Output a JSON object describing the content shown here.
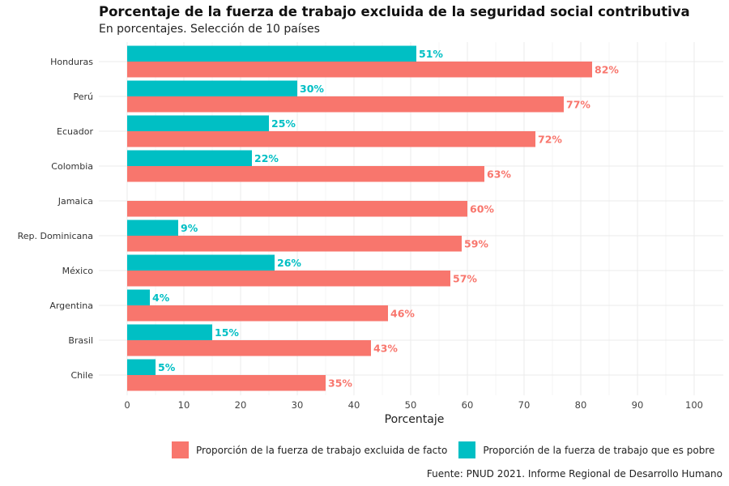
{
  "header": {
    "title": "Porcentaje de la fuerza de trabajo excluida de la seguridad social contributiva",
    "subtitle": "En porcentajes. Selección de 10 países"
  },
  "footer": {
    "source": "Fuente: PNUD 2021. Informe Regional de Desarrollo Humano"
  },
  "colors": {
    "excluida": "#F8766D",
    "pobre": "#00BFC4",
    "grid": "#EBEBEB"
  },
  "chart_data": {
    "type": "bar",
    "orientation": "horizontal",
    "categories": [
      "Honduras",
      "Perú",
      "Ecuador",
      "Colombia",
      "Jamaica",
      "Rep. Dominicana",
      "México",
      "Argentina",
      "Brasil",
      "Chile"
    ],
    "series": [
      {
        "name": "Proporción de la fuerza de trabajo que es pobre",
        "values": [
          51,
          30,
          25,
          22,
          null,
          9,
          26,
          4,
          15,
          5
        ]
      },
      {
        "name": "Proporción de la fuerza de trabajo excluida de facto",
        "values": [
          82,
          77,
          72,
          63,
          60,
          59,
          57,
          46,
          43,
          35
        ]
      }
    ],
    "value_suffix": "%",
    "xlabel": "Porcentaje",
    "ylabel": "",
    "xlim": [
      0,
      100
    ],
    "xticks": [
      0,
      10,
      20,
      30,
      40,
      50,
      60,
      70,
      80,
      90,
      100
    ],
    "legend": {
      "position": "bottom",
      "entries": [
        "Proporción de la fuerza de trabajo excluida de facto",
        "Proporción de la fuerza de trabajo que es pobre"
      ]
    },
    "grid": true
  }
}
